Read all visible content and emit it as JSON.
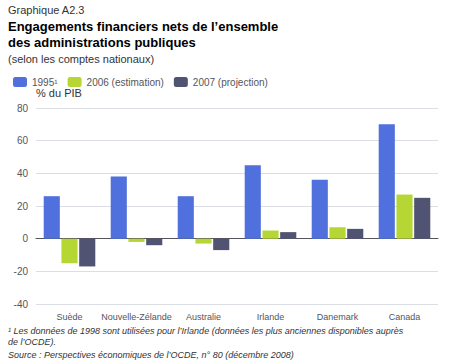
{
  "chart_data": {
    "type": "bar",
    "title": "Engagements financiers nets de l’ensemble\ndes administrations publiques",
    "subtitle": "(selon les comptes nationaux)",
    "ylabel": "% du PIB",
    "categories": [
      "Suède",
      "Nouvelle-Zélande",
      "Australie",
      "Irlande",
      "Danemark",
      "Canada"
    ],
    "series": [
      {
        "name": "1995¹",
        "values": [
          26,
          38,
          26,
          45,
          36,
          70
        ]
      },
      {
        "name": "2006 (estimation)",
        "values": [
          -15,
          -2,
          -3,
          5,
          7,
          27
        ]
      },
      {
        "name": "2007 (projection)",
        "values": [
          -17,
          -4,
          -7,
          4,
          6,
          25
        ]
      }
    ],
    "ylim": [
      -40,
      80
    ],
    "yticks": [
      -40,
      -20,
      0,
      20,
      40,
      60,
      80
    ],
    "grid": true,
    "legend": "upper left",
    "annotations": [
      "Graphique A2.3",
      "¹ Les données de 1998 sont utilisées pour l’Irlande (données les plus anciennes disponibles auprès de l’OCDE).",
      "Source : Perspectives économiques de l’OCDE, n° 80 (décembre 2008)"
    ]
  }
}
